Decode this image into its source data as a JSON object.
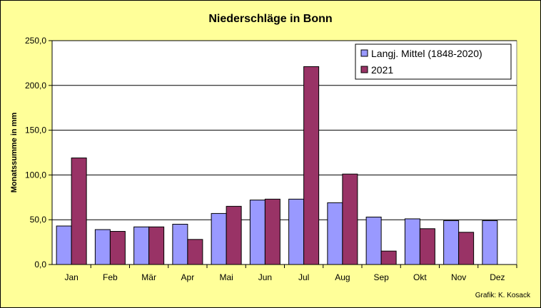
{
  "chart_data": {
    "type": "bar",
    "title": "Niederschläge in Bonn",
    "xlabel": "",
    "ylabel": "Monatssumme in mm",
    "ylim": [
      0,
      250
    ],
    "yticks": [
      "0,0",
      "50,0",
      "100,0",
      "150,0",
      "200,0",
      "250,0"
    ],
    "grid": true,
    "legend_position": "top-right",
    "categories": [
      "Jan",
      "Feb",
      "Mär",
      "Apr",
      "Mai",
      "Jun",
      "Jul",
      "Aug",
      "Sep",
      "Okt",
      "Nov",
      "Dez"
    ],
    "series": [
      {
        "name": "Langj. Mittel (1848-2020)",
        "color": "#9999ff",
        "values": [
          43,
          39,
          42,
          45,
          57,
          72,
          73,
          69,
          53,
          51,
          49,
          49
        ]
      },
      {
        "name": "2021",
        "color": "#993366",
        "values": [
          119,
          37,
          42,
          28,
          65,
          73,
          221,
          101,
          15,
          40,
          36,
          null
        ]
      }
    ]
  },
  "footer": {
    "credit": "Grafik:  K. Kosack"
  },
  "colors": {
    "background": "#ffff99",
    "plot_area": "#ffffff"
  }
}
